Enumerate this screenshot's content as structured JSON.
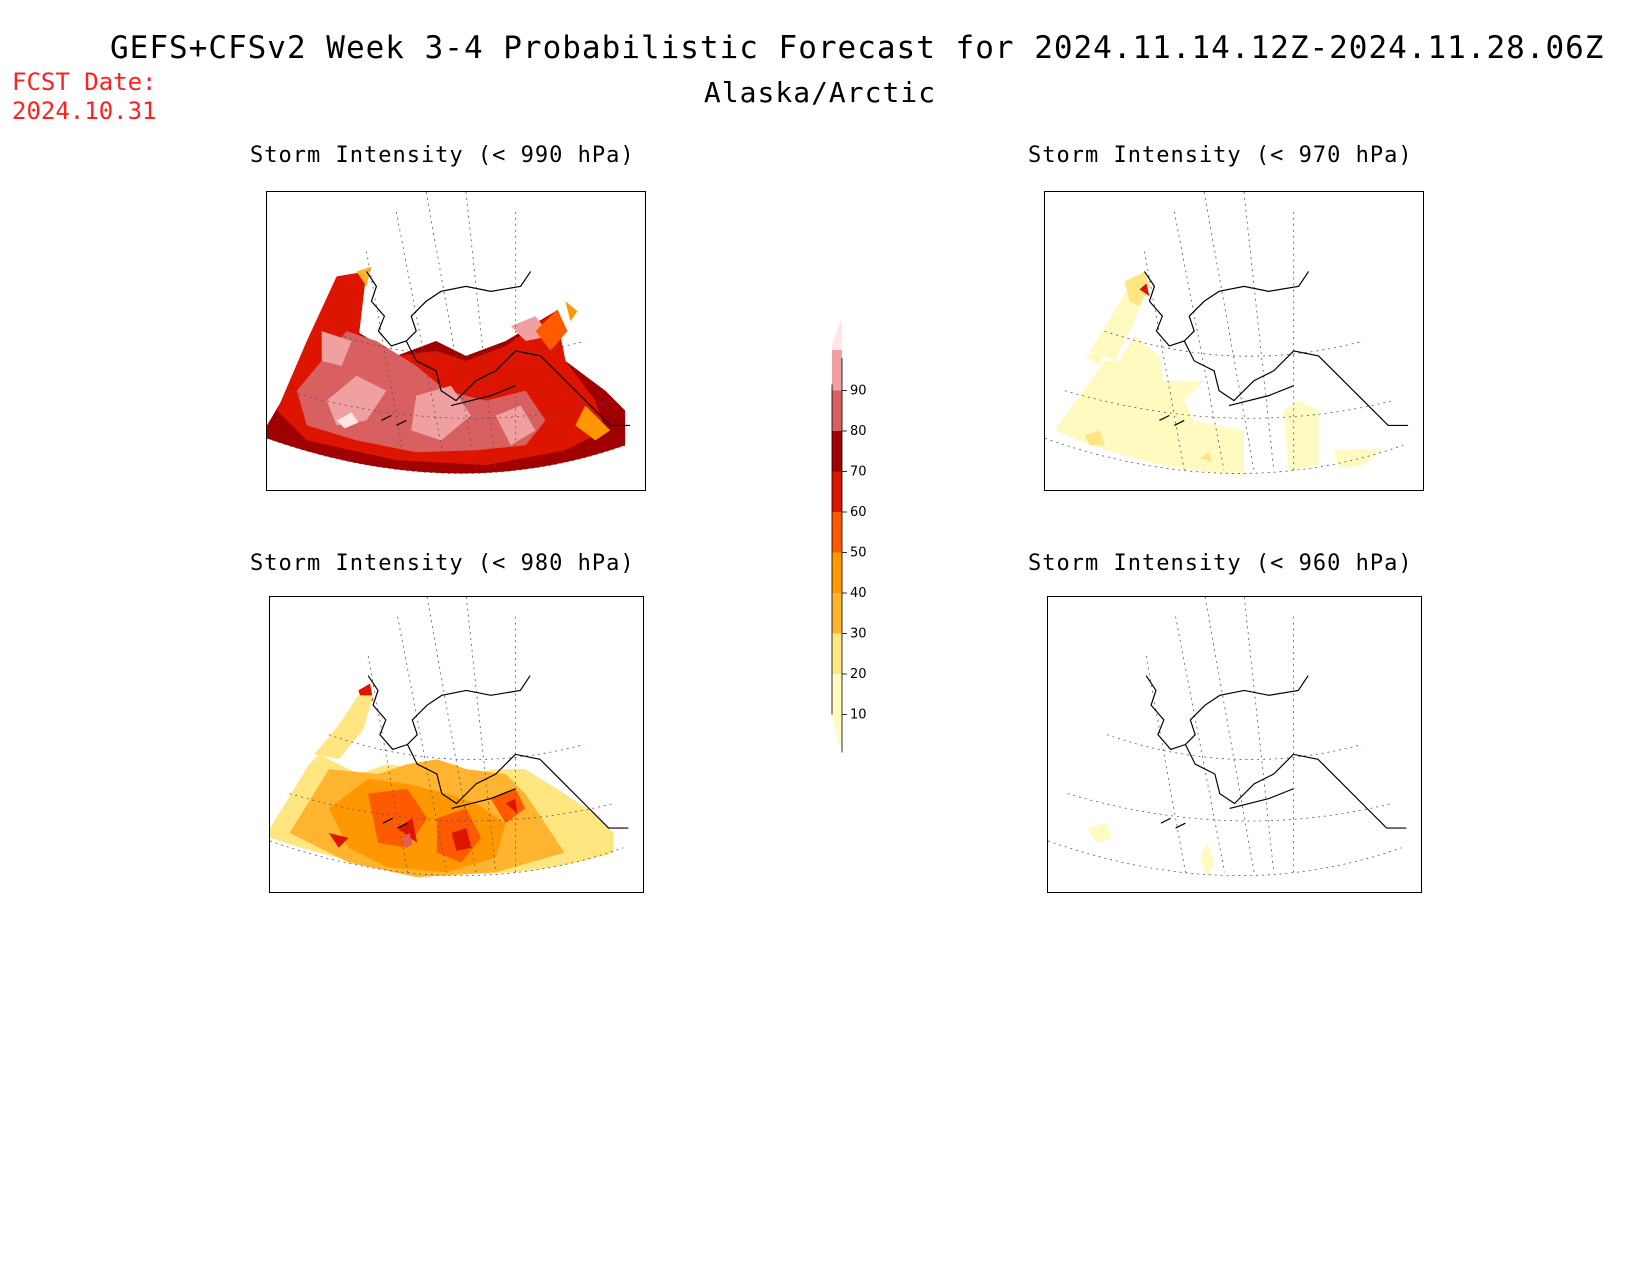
{
  "title": "GEFS+CFSv2 Week 3-4 Probabilistic Forecast for 2024.11.14.12Z-2024.11.28.06Z",
  "region": "Alaska/Arctic",
  "fcst_label": "FCST Date:",
  "fcst_date": "2024.10.31",
  "panels": [
    {
      "title": "Storm Intensity (< 990 hPa)",
      "threshold_hPa": 990,
      "probability_range_percent": [
        10,
        90
      ],
      "dominant_probability_percent": "60-80"
    },
    {
      "title": "Storm Intensity (< 970 hPa)",
      "threshold_hPa": 970,
      "probability_range_percent": [
        10,
        60
      ],
      "dominant_probability_percent": "10-20"
    },
    {
      "title": "Storm Intensity (< 980 hPa)",
      "threshold_hPa": 980,
      "probability_range_percent": [
        10,
        80
      ],
      "dominant_probability_percent": "30-50"
    },
    {
      "title": "Storm Intensity (< 960 hPa)",
      "threshold_hPa": 960,
      "probability_range_percent": [
        0,
        20
      ],
      "dominant_probability_percent": "0-10"
    }
  ],
  "colorbar": {
    "levels": [
      "10",
      "20",
      "30",
      "40",
      "50",
      "60",
      "70",
      "80",
      "90"
    ],
    "colors": [
      "#fffac0",
      "#ffe680",
      "#ffb430",
      "#ff9800",
      "#ff5a00",
      "#dc1400",
      "#a00000",
      "#d86060",
      "#f0a0a0",
      "#ffe6e6"
    ]
  }
}
